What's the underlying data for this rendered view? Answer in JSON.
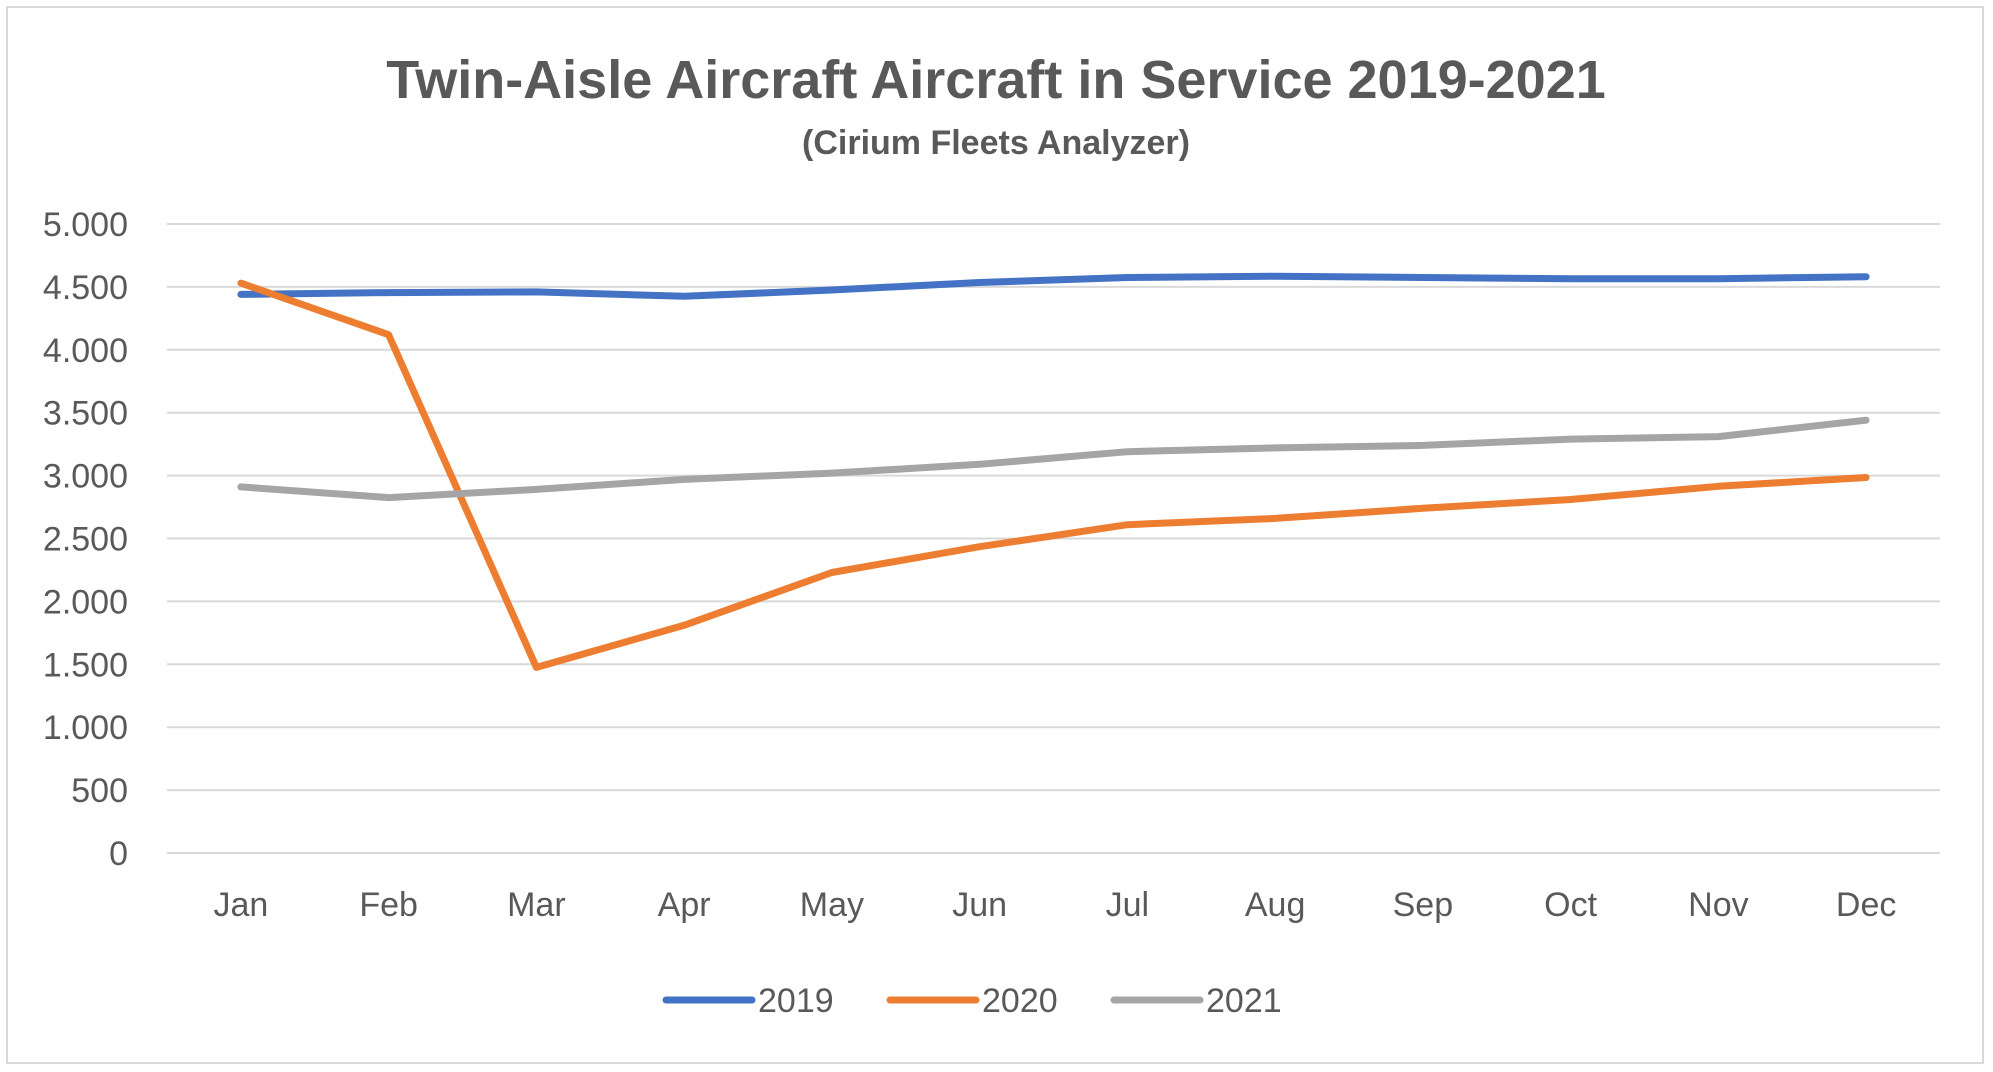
{
  "chart_data": {
    "type": "line",
    "title": "Twin-Aisle Aircraft Aircraft in Service 2019-2021",
    "subtitle": "(Cirium Fleets Analyzer)",
    "xlabel": "",
    "ylabel": "",
    "categories": [
      "Jan",
      "Feb",
      "Mar",
      "Apr",
      "May",
      "Jun",
      "Jul",
      "Aug",
      "Sep",
      "Oct",
      "Nov",
      "Dec"
    ],
    "ylim": [
      0,
      5000
    ],
    "yticks": [
      0,
      500,
      1000,
      1500,
      2000,
      2500,
      3000,
      3500,
      4000,
      4500,
      5000
    ],
    "ytick_labels": [
      "0",
      "500",
      "1.000",
      "1.500",
      "2.000",
      "2.500",
      "3.000",
      "3.500",
      "4.000",
      "4.500",
      "5.000"
    ],
    "grid": "horizontal",
    "legend_position": "bottom",
    "series": [
      {
        "name": "2019",
        "color": "#4472C4",
        "values": [
          4440,
          4455,
          4460,
          4425,
          4475,
          4535,
          4575,
          4585,
          4575,
          4565,
          4565,
          4580
        ]
      },
      {
        "name": "2020",
        "color": "#ED7D31",
        "values": [
          4530,
          4120,
          1475,
          1810,
          2230,
          2435,
          2610,
          2660,
          2740,
          2810,
          2915,
          2985
        ]
      },
      {
        "name": "2021",
        "color": "#A5A5A5",
        "values": [
          2910,
          2825,
          2890,
          2970,
          3020,
          3090,
          3190,
          3220,
          3240,
          3290,
          3310,
          3440
        ]
      }
    ]
  }
}
